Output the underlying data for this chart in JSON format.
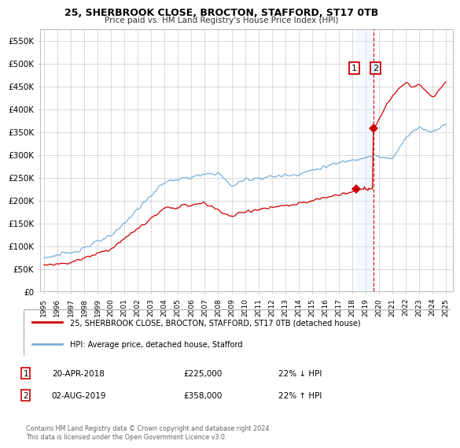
{
  "title": "25, SHERBROOK CLOSE, BROCTON, STAFFORD, ST17 0TB",
  "subtitle": "Price paid vs. HM Land Registry's House Price Index (HPI)",
  "ylabel_ticks": [
    "£0",
    "£50K",
    "£100K",
    "£150K",
    "£200K",
    "£250K",
    "£300K",
    "£350K",
    "£400K",
    "£450K",
    "£500K",
    "£550K"
  ],
  "ytick_values": [
    0,
    50000,
    100000,
    150000,
    200000,
    250000,
    300000,
    350000,
    400000,
    450000,
    500000,
    550000
  ],
  "ylim": [
    0,
    575000
  ],
  "legend_entry1": "25, SHERBROOK CLOSE, BROCTON, STAFFORD, ST17 0TB (detached house)",
  "legend_entry2": "HPI: Average price, detached house, Stafford",
  "transaction1_date": "20-APR-2018",
  "transaction1_price": "£225,000",
  "transaction1_hpi": "22% ↓ HPI",
  "transaction2_date": "02-AUG-2019",
  "transaction2_price": "£358,000",
  "transaction2_hpi": "22% ↑ HPI",
  "footer": "Contains HM Land Registry data © Crown copyright and database right 2024.\nThis data is licensed under the Open Government Licence v3.0.",
  "line_color_red": "#cc0000",
  "line_color_blue": "#7bafd4",
  "vline_color": "#cc0000",
  "shaded_color": "#ddeeff",
  "bg_color": "#ffffff",
  "grid_color": "#cccccc",
  "x_start_year": 1995,
  "x_end_year": 2025,
  "t1_year": 2018.3,
  "t2_year": 2019.58,
  "t1_price": 225000,
  "t2_price": 358000
}
